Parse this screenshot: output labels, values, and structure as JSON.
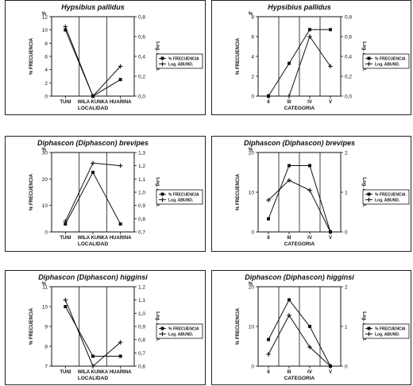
{
  "legend_labels": {
    "frecuencia": "% FRECUENCIA",
    "abund": "Log. ABUND."
  },
  "chart_data": [
    {
      "type": "line",
      "title": "Hypsibius  pallidus",
      "xlabel": "LOCALIDAD",
      "ylabel_left": "% FRECUENCIA",
      "ylabel_left_unit": "%",
      "ylabel_right": "Log. ABUND.",
      "categories": [
        "TUNI",
        "WILA KUNKA",
        "HUARINA"
      ],
      "ylim_left": [
        0,
        12
      ],
      "yticks_left": [
        "0",
        "2",
        "4",
        "6",
        "8",
        "10",
        "12"
      ],
      "ylim_right": [
        0,
        0.8
      ],
      "yticks_right": [
        "0,0",
        "0,2",
        "0,4",
        "0,6",
        "0,8"
      ],
      "series": [
        {
          "name": "% FRECUENCIA",
          "axis": "left",
          "marker": "square",
          "values": [
            10.0,
            0.0,
            2.5
          ]
        },
        {
          "name": "Log. ABUND.",
          "axis": "right",
          "marker": "plus",
          "values": [
            0.7,
            0.0,
            0.3
          ]
        }
      ],
      "legend": "right"
    },
    {
      "type": "line",
      "title": "Hypsibius  pallidus",
      "xlabel": "CATEGORIA",
      "ylabel_left": "% FRECUENCIA",
      "ylabel_left_unit": "%",
      "ylabel_right": "Log. ABUND.",
      "categories": [
        "II",
        "III",
        "IV",
        "V"
      ],
      "ylim_left": [
        0,
        8
      ],
      "yticks_left": [
        "0",
        "2",
        "4",
        "6",
        "8"
      ],
      "ylim_right": [
        0,
        0.8
      ],
      "yticks_right": [
        "0,0",
        "0,2",
        "0,4",
        "0,6",
        "0,8"
      ],
      "series": [
        {
          "name": "% FRECUENCIA",
          "axis": "left",
          "marker": "square",
          "values": [
            0.0,
            3.3,
            6.7,
            6.7
          ]
        },
        {
          "name": "Log. ABUND.",
          "axis": "right",
          "marker": "plus",
          "values": [
            0.0,
            0.0,
            0.6,
            0.3
          ]
        }
      ],
      "legend": "right"
    },
    {
      "type": "line",
      "title": "Diphascon  (Diphascon)  brevipes",
      "xlabel": "LOCALIDAD",
      "ylabel_left": "% FRECUENCIA",
      "ylabel_left_unit": "%",
      "ylabel_right": "Log. ABUND.",
      "categories": [
        "TUNI",
        "WILA KUNKA",
        "HUARINA"
      ],
      "ylim_left": [
        0,
        30
      ],
      "yticks_left": [
        "0",
        "10",
        "20",
        "30"
      ],
      "ylim_right": [
        0.7,
        1.3
      ],
      "yticks_right": [
        "0,7",
        "0,8",
        "0,9",
        "1,0",
        "1,1",
        "1,2",
        "1,3"
      ],
      "series": [
        {
          "name": "% FRECUENCIA",
          "axis": "left",
          "marker": "square",
          "values": [
            3,
            22.5,
            3
          ]
        },
        {
          "name": "Log. ABUND.",
          "axis": "right",
          "marker": "plus",
          "values": [
            0.78,
            1.22,
            1.2
          ]
        }
      ],
      "legend": "right"
    },
    {
      "type": "line",
      "title": "Diphascon  (Diphascon)  brevipes",
      "xlabel": "CATEGORIA",
      "ylabel_left": "% FRECUENCIA",
      "ylabel_left_unit": "%",
      "ylabel_right": "Log. ABUND.",
      "categories": [
        "II",
        "III",
        "IV",
        "V"
      ],
      "ylim_left": [
        0,
        20
      ],
      "yticks_left": [
        "0",
        "10",
        "20"
      ],
      "ylim_right": [
        0,
        2
      ],
      "yticks_right": [
        "0",
        "1",
        "2"
      ],
      "series": [
        {
          "name": "% FRECUENCIA",
          "axis": "left",
          "marker": "square",
          "values": [
            3.3,
            16.7,
            16.7,
            0
          ]
        },
        {
          "name": "Log. ABUND.",
          "axis": "right",
          "marker": "plus",
          "values": [
            0.8,
            1.3,
            1.05,
            0
          ]
        }
      ],
      "legend": "right"
    },
    {
      "type": "line",
      "title": "Diphascon  (Diphascon)  higginsi",
      "xlabel": "LOCALIDAD",
      "ylabel_left": "% FRECUENCIA",
      "ylabel_left_unit": "%",
      "ylabel_right": "Log. ABUND.",
      "categories": [
        "TUNI",
        "WILA KUNKA",
        "HUARINA"
      ],
      "ylim_left": [
        7,
        11
      ],
      "yticks_left": [
        "7",
        "8",
        "9",
        "10",
        "11"
      ],
      "ylim_right": [
        0.6,
        1.2
      ],
      "yticks_right": [
        "0,6",
        "0,7",
        "0,8",
        "0,9",
        "1,0",
        "1,1",
        "1,2"
      ],
      "series": [
        {
          "name": "% FRECUENCIA",
          "axis": "left",
          "marker": "square",
          "values": [
            10.0,
            7.5,
            7.5
          ]
        },
        {
          "name": "Log. ABUND.",
          "axis": "right",
          "marker": "plus",
          "values": [
            1.1,
            0.6,
            0.78
          ]
        }
      ],
      "legend": "right"
    },
    {
      "type": "line",
      "title": "Diphascon  (Diphascon)  higginsi",
      "xlabel": "CATEGORIA",
      "ylabel_left": "% FRECUENCIA",
      "ylabel_left_unit": "%",
      "ylabel_right": "Log. ABUND.",
      "categories": [
        "II",
        "III",
        "IV",
        "V"
      ],
      "ylim_left": [
        0,
        20
      ],
      "yticks_left": [
        "0",
        "10",
        "20"
      ],
      "ylim_right": [
        0,
        2
      ],
      "yticks_right": [
        "0",
        "1",
        "2"
      ],
      "series": [
        {
          "name": "% FRECUENCIA",
          "axis": "left",
          "marker": "square",
          "values": [
            6.7,
            16.7,
            10,
            0
          ]
        },
        {
          "name": "Log. ABUND.",
          "axis": "right",
          "marker": "plus",
          "values": [
            0.3,
            1.28,
            0.48,
            0
          ]
        }
      ],
      "legend": "right"
    }
  ]
}
